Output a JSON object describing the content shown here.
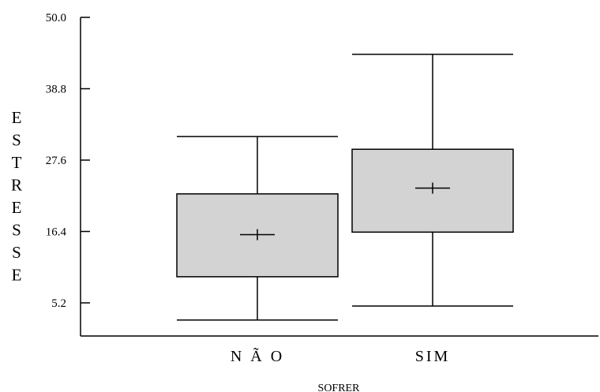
{
  "chart_data": {
    "type": "boxplot",
    "title": "",
    "xlabel": "SOFRER",
    "ylabel": "ESTRESSE",
    "ylim": [
      0.0,
      50.0
    ],
    "yticks": [
      "5.2",
      "16.4",
      "27.6",
      "38.8",
      "50.0"
    ],
    "categories": [
      "N Ã O",
      "SIM"
    ],
    "boxes": [
      {
        "category": "N Ã O",
        "whisker_low": 2.5,
        "q1": 9.3,
        "median": 15.9,
        "q3": 22.3,
        "whisker_high": 31.3
      },
      {
        "category": "SIM",
        "whisker_low": 4.7,
        "q1": 16.3,
        "median": 23.2,
        "q3": 29.3,
        "whisker_high": 44.2
      }
    ],
    "box_color": "#d3d3d3",
    "line_color": "#000000",
    "grid": false
  }
}
